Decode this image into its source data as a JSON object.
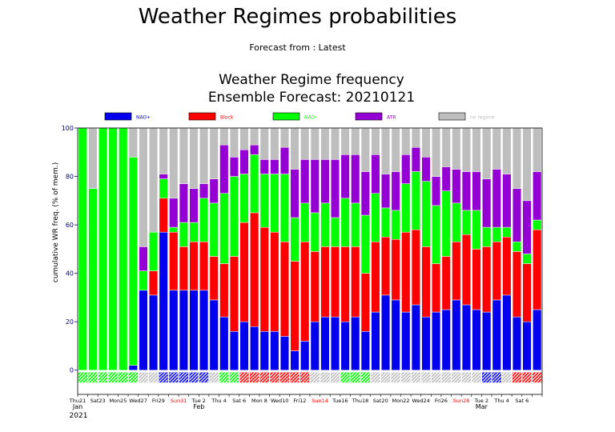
{
  "page": {
    "title": "Weather Regimes probabilities",
    "subtitle": "Forecast from : Latest"
  },
  "chart_data": {
    "type": "bar",
    "stacked": true,
    "title": "Weather Regime frequency",
    "subtitle": "Ensemble Forecast: 20210121",
    "ylabel": "cumulative WR freq. (% of mem.)",
    "ylim": [
      -10,
      100
    ],
    "yticks": [
      0,
      20,
      40,
      60,
      80,
      100
    ],
    "legend_position": "top",
    "colors": {
      "NAO+": "#0000ee",
      "Block": "#ff0000",
      "NAO-": "#00ff00",
      "ATR": "#9400d3",
      "no regime": "#bebebe"
    },
    "series": [
      {
        "name": "NAO+",
        "values": [
          0,
          0,
          0,
          0,
          0,
          2,
          33,
          31,
          57,
          33,
          33,
          33,
          33,
          29,
          22,
          16,
          20,
          18,
          16,
          16,
          14,
          8,
          12,
          20,
          22,
          22,
          20,
          22,
          16,
          24,
          31,
          29,
          24,
          27,
          22,
          24,
          25,
          29,
          27,
          25,
          24,
          29,
          31,
          22,
          20,
          25
        ]
      },
      {
        "name": "Block",
        "values": [
          0,
          0,
          0,
          0,
          0,
          0,
          0,
          10,
          14,
          24,
          18,
          20,
          20,
          18,
          22,
          31,
          41,
          47,
          43,
          41,
          39,
          37,
          41,
          29,
          29,
          29,
          31,
          29,
          24,
          29,
          24,
          25,
          33,
          31,
          29,
          20,
          22,
          24,
          29,
          25,
          27,
          24,
          24,
          27,
          24,
          33
        ]
      },
      {
        "name": "NAO-",
        "values": [
          100,
          75,
          100,
          100,
          100,
          86,
          8,
          16,
          8,
          2,
          10,
          8,
          18,
          22,
          29,
          33,
          20,
          24,
          22,
          24,
          28,
          18,
          16,
          16,
          18,
          12,
          20,
          18,
          24,
          20,
          12,
          12,
          20,
          24,
          27,
          24,
          27,
          16,
          10,
          16,
          8,
          6,
          4,
          4,
          4,
          4
        ]
      },
      {
        "name": "ATR",
        "values": [
          0,
          0,
          0,
          0,
          0,
          0,
          10,
          0,
          2,
          12,
          16,
          14,
          6,
          10,
          20,
          8,
          10,
          4,
          6,
          6,
          11,
          20,
          18,
          22,
          18,
          24,
          18,
          20,
          18,
          16,
          14,
          16,
          12,
          10,
          10,
          12,
          10,
          14,
          16,
          16,
          20,
          24,
          22,
          22,
          22,
          20
        ]
      },
      {
        "name": "no regime",
        "values": [
          0,
          25,
          0,
          0,
          0,
          12,
          49,
          43,
          19,
          29,
          23,
          25,
          23,
          21,
          7,
          12,
          9,
          7,
          13,
          13,
          8,
          17,
          13,
          13,
          13,
          13,
          11,
          11,
          18,
          11,
          19,
          18,
          11,
          8,
          12,
          20,
          16,
          17,
          18,
          18,
          21,
          17,
          19,
          25,
          30,
          18
        ]
      }
    ],
    "day_markers": [
      "NAO-",
      "NAO-",
      "NAO-",
      "NAO-",
      "NAO-",
      "NAO-",
      "none",
      "none",
      "NAO+",
      "NAO+",
      "NAO+",
      "NAO+",
      "NAO+",
      "none",
      "NAO-",
      "NAO-",
      "Block",
      "Block",
      "Block",
      "Block",
      "Block",
      "Block",
      "Block",
      "none",
      "none",
      "none",
      "NAO-",
      "NAO-",
      "NAO-",
      "none",
      "none",
      "none",
      "none",
      "none",
      "none",
      "none",
      "none",
      "none",
      "none",
      "none",
      "NAO+",
      "NAO+",
      "none",
      "Block",
      "Block",
      "Block"
    ],
    "x_tick_labels": [
      {
        "day": 0,
        "label": "Thu21",
        "weekend": false
      },
      {
        "day": 2,
        "label": "Sat23",
        "weekend": false
      },
      {
        "day": 4,
        "label": "Mon25",
        "weekend": false
      },
      {
        "day": 6,
        "label": "Wed27",
        "weekend": false
      },
      {
        "day": 8,
        "label": "Fri29",
        "weekend": false
      },
      {
        "day": 10,
        "label": "Sun31",
        "weekend": true
      },
      {
        "day": 12,
        "label": "Tue 2",
        "weekend": false
      },
      {
        "day": 14,
        "label": "Thu 4",
        "weekend": false
      },
      {
        "day": 16,
        "label": "Sat 6",
        "weekend": false
      },
      {
        "day": 18,
        "label": "Mon 8",
        "weekend": false
      },
      {
        "day": 20,
        "label": "Wed10",
        "weekend": false
      },
      {
        "day": 22,
        "label": "Fri12",
        "weekend": false
      },
      {
        "day": 24,
        "label": "Sun14",
        "weekend": true
      },
      {
        "day": 26,
        "label": "Tue16",
        "weekend": false
      },
      {
        "day": 28,
        "label": "Thu18",
        "weekend": false
      },
      {
        "day": 30,
        "label": "Sat20",
        "weekend": false
      },
      {
        "day": 32,
        "label": "Mon22",
        "weekend": false
      },
      {
        "day": 34,
        "label": "Wed24",
        "weekend": false
      },
      {
        "day": 36,
        "label": "Fri26",
        "weekend": false
      },
      {
        "day": 38,
        "label": "Sun28",
        "weekend": true
      },
      {
        "day": 40,
        "label": "Tue 2",
        "weekend": false
      },
      {
        "day": 42,
        "label": "Thu 4",
        "weekend": false
      },
      {
        "day": 44,
        "label": "Sat 6",
        "weekend": false
      }
    ],
    "month_labels": [
      {
        "day": 0,
        "label": "Jan"
      },
      {
        "day": 12,
        "label": "Feb"
      },
      {
        "day": 40,
        "label": "Mar"
      }
    ],
    "year_label": "2021",
    "weekend_color": "#ff0000",
    "axis_color": "#000080"
  }
}
